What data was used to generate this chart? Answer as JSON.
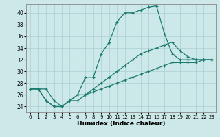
{
  "xlabel": "Humidex (Indice chaleur)",
  "bg_color": "#cce8e8",
  "line_color": "#1a7a6e",
  "grid_color": "#aacfcf",
  "xlim": [
    -0.5,
    23.5
  ],
  "ylim": [
    23,
    41.5
  ],
  "yticks": [
    24,
    26,
    28,
    30,
    32,
    34,
    36,
    38,
    40
  ],
  "xticks": [
    0,
    1,
    2,
    3,
    4,
    5,
    6,
    7,
    8,
    9,
    10,
    11,
    12,
    13,
    14,
    15,
    16,
    17,
    18,
    19,
    20,
    21,
    22,
    23
  ],
  "line1_x": [
    0,
    1,
    2,
    3,
    4,
    5,
    6,
    7,
    8,
    9,
    10,
    11,
    12,
    13,
    14,
    15,
    16,
    17,
    18,
    19,
    20,
    21,
    22,
    23
  ],
  "line1_y": [
    27,
    27,
    27,
    25,
    24,
    25,
    25,
    26,
    26.5,
    27,
    27.5,
    28,
    28.5,
    29,
    29.5,
    30,
    30.5,
    31,
    31.5,
    31.5,
    31.5,
    31.5,
    32,
    32
  ],
  "line2_x": [
    0,
    1,
    2,
    3,
    4,
    5,
    6,
    7,
    8,
    9,
    10,
    11,
    12,
    13,
    14,
    15,
    16,
    17,
    18,
    19,
    20,
    21,
    22,
    23
  ],
  "line2_y": [
    27,
    27,
    25,
    24,
    24,
    25,
    26,
    29,
    29,
    33,
    35,
    38.5,
    40,
    40,
    40.5,
    41,
    41.2,
    36.5,
    33,
    32,
    32,
    32,
    32,
    32
  ],
  "line3_x": [
    0,
    1,
    2,
    3,
    4,
    5,
    6,
    7,
    8,
    9,
    10,
    11,
    12,
    13,
    14,
    15,
    16,
    17,
    18,
    19,
    20,
    21,
    22,
    23
  ],
  "line3_y": [
    27,
    27,
    25,
    24,
    24,
    25,
    26,
    26,
    27,
    28,
    29,
    30,
    31,
    32,
    33,
    33.5,
    34,
    34.5,
    35,
    33.5,
    32.5,
    32,
    32,
    32
  ]
}
